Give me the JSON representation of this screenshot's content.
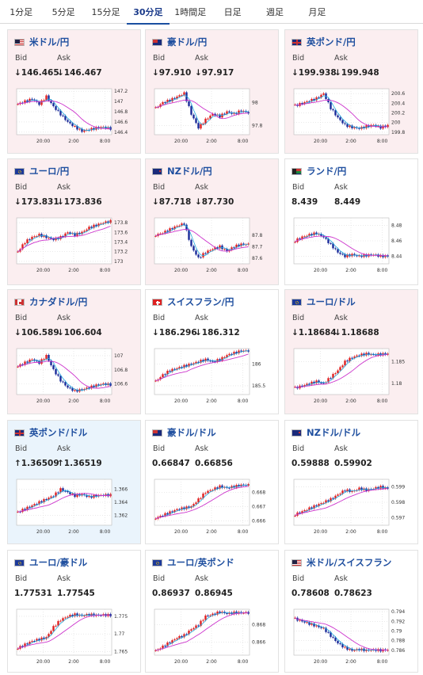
{
  "tabs": [
    {
      "label": "1分足"
    },
    {
      "label": "5分足"
    },
    {
      "label": "15分足"
    },
    {
      "label": "30分足",
      "active": true
    },
    {
      "label": "1時間足"
    },
    {
      "label": "日足"
    },
    {
      "label": "週足"
    },
    {
      "label": "月足"
    }
  ],
  "labels": {
    "bid": "Bid",
    "ask": "Ask"
  },
  "colors": {
    "up": "#e02020",
    "down": "#1a2a9a",
    "ma_short": "#22aadd",
    "ma_long": "#cc33cc",
    "card_red": "#fbeef0",
    "card_blue": "#eaf4fc"
  },
  "pairs": [
    {
      "name": "米ドル/円",
      "flag": "us-flag-icon",
      "bid": "↓146.465",
      "ask": "↓146.467",
      "bg": "red",
      "chart_data": {
        "type": "line",
        "x_ticks": [
          "20:00",
          "2:00",
          "8:00"
        ],
        "y_ticks": [
          "147.2",
          "147",
          "146.8",
          "146.6",
          "146.4"
        ],
        "ylim": [
          146.35,
          147.25
        ],
        "series": [
          {
            "values": [
              146.95,
              147.0,
              147.05,
              146.95,
              147.1,
              146.9,
              146.75,
              146.6,
              146.5,
              146.42,
              146.45,
              146.48,
              146.5,
              146.47
            ]
          }
        ]
      }
    },
    {
      "name": "豪ドル/円",
      "flag": "au-flag-icon",
      "bid": "↓97.910",
      "ask": "↓97.917",
      "bg": "red",
      "chart_data": {
        "type": "line",
        "x_ticks": [
          "20:00",
          "2:00",
          "8:00"
        ],
        "y_ticks": [
          "98",
          "97.8"
        ],
        "ylim": [
          97.72,
          98.12
        ],
        "series": [
          {
            "values": [
              97.95,
              98.0,
              98.02,
              98.05,
              98.08,
              97.9,
              97.78,
              97.85,
              97.9,
              97.88,
              97.92,
              97.9,
              97.93,
              97.91
            ]
          }
        ]
      }
    },
    {
      "name": "英ポンド/円",
      "flag": "gb-flag-icon",
      "bid": "↓199.938",
      "ask": "↓199.948",
      "bg": "red",
      "chart_data": {
        "type": "line",
        "x_ticks": [
          "20:00",
          "2:00",
          "8:00"
        ],
        "y_ticks": [
          "200.6",
          "200.4",
          "200.2",
          "200",
          "199.8"
        ],
        "ylim": [
          199.75,
          200.7
        ],
        "series": [
          {
            "values": [
              200.35,
              200.4,
              200.45,
              200.5,
              200.6,
              200.3,
              200.1,
              199.95,
              199.9,
              199.88,
              199.92,
              199.95,
              199.9,
              199.94
            ]
          }
        ]
      }
    },
    {
      "name": "ユーロ/円",
      "flag": "eu-flag-icon",
      "bid": "↓173.831",
      "ask": "↓173.836",
      "bg": "red",
      "chart_data": {
        "type": "line",
        "x_ticks": [
          "20:00",
          "2:00",
          "8:00"
        ],
        "y_ticks": [
          "173.8",
          "173.6",
          "173.4",
          "173.2",
          "173"
        ],
        "ylim": [
          172.95,
          173.9
        ],
        "series": [
          {
            "values": [
              173.2,
              173.4,
              173.5,
              173.55,
              173.5,
              173.45,
              173.5,
              173.6,
              173.55,
              173.6,
              173.7,
              173.75,
              173.8,
              173.83
            ]
          }
        ]
      }
    },
    {
      "name": "NZドル/円",
      "flag": "nz-flag-icon",
      "bid": "↓87.718",
      "ask": "↓87.730",
      "bg": "red",
      "chart_data": {
        "type": "line",
        "x_ticks": [
          "20:00",
          "2:00",
          "8:00"
        ],
        "y_ticks": [
          "87.8",
          "87.7",
          "87.6"
        ],
        "ylim": [
          87.55,
          87.95
        ],
        "series": [
          {
            "values": [
              87.8,
              87.82,
              87.85,
              87.88,
              87.9,
              87.7,
              87.6,
              87.65,
              87.68,
              87.7,
              87.66,
              87.7,
              87.72,
              87.72
            ]
          }
        ]
      }
    },
    {
      "name": "ランド/円",
      "flag": "za-flag-icon",
      "bid": "8.439",
      "ask": "8.449",
      "bg": "white",
      "chart_data": {
        "type": "line",
        "x_ticks": [
          "20:00",
          "2:00",
          "8:00"
        ],
        "y_ticks": [
          "8.48",
          "8.46",
          "8.44"
        ],
        "ylim": [
          8.43,
          8.49
        ],
        "series": [
          {
            "values": [
              8.46,
              8.465,
              8.468,
              8.47,
              8.465,
              8.455,
              8.445,
              8.44,
              8.442,
              8.44,
              8.441,
              8.442,
              8.44,
              8.44
            ]
          }
        ]
      }
    },
    {
      "name": "カナダドル/円",
      "flag": "ca-flag-icon",
      "bid": "↓106.589",
      "ask": "↓106.604",
      "bg": "red",
      "chart_data": {
        "type": "line",
        "x_ticks": [
          "20:00",
          "2:00",
          "8:00"
        ],
        "y_ticks": [
          "107",
          "106.8",
          "106.6"
        ],
        "ylim": [
          106.45,
          107.1
        ],
        "series": [
          {
            "values": [
              106.85,
              106.9,
              106.95,
              106.9,
              107.0,
              106.8,
              106.65,
              106.55,
              106.5,
              106.52,
              106.55,
              106.58,
              106.6,
              106.59
            ]
          }
        ]
      }
    },
    {
      "name": "スイスフラン/円",
      "flag": "ch-flag-icon",
      "bid": "↓186.296",
      "ask": "↓186.312",
      "bg": "white",
      "chart_data": {
        "type": "line",
        "x_ticks": [
          "20:00",
          "2:00",
          "8:00"
        ],
        "y_ticks": [
          "186",
          "185.5"
        ],
        "ylim": [
          185.3,
          186.35
        ],
        "series": [
          {
            "values": [
              185.6,
              185.75,
              185.85,
              185.9,
              185.95,
              186.0,
              186.05,
              186.1,
              186.05,
              186.1,
              186.2,
              186.25,
              186.3,
              186.3
            ]
          }
        ]
      }
    },
    {
      "name": "ユーロ/ドル",
      "flag": "eu-us-flag-icon",
      "bid": "↓1.18684",
      "ask": "↓1.18688",
      "bg": "red",
      "chart_data": {
        "type": "line",
        "x_ticks": [
          "20:00",
          "2:00",
          "8:00"
        ],
        "y_ticks": [
          "1.185",
          "1.18"
        ],
        "ylim": [
          1.1775,
          1.188
        ],
        "series": [
          {
            "values": [
              1.179,
              1.1795,
              1.18,
              1.1805,
              1.18,
              1.1815,
              1.183,
              1.185,
              1.186,
              1.1865,
              1.1868,
              1.1866,
              1.1867,
              1.1868
            ]
          }
        ]
      }
    },
    {
      "name": "英ポンド/ドル",
      "flag": "gb-us-flag-icon",
      "bid": "↑1.36509",
      "ask": "↑1.36519",
      "bg": "blue",
      "chart_data": {
        "type": "line",
        "x_ticks": [
          "20:00",
          "2:00",
          "8:00"
        ],
        "y_ticks": [
          "1.366",
          "1.364",
          "1.362"
        ],
        "ylim": [
          1.3605,
          1.3675
        ],
        "series": [
          {
            "values": [
              1.3625,
              1.363,
              1.3635,
              1.364,
              1.3645,
              1.365,
              1.366,
              1.3655,
              1.365,
              1.3652,
              1.3648,
              1.365,
              1.3651,
              1.3651
            ]
          }
        ]
      }
    },
    {
      "name": "豪ドル/ドル",
      "flag": "au-us-flag-icon",
      "bid": "0.66847",
      "ask": "0.66856",
      "bg": "white",
      "chart_data": {
        "type": "line",
        "x_ticks": [
          "20:00",
          "2:00",
          "8:00"
        ],
        "y_ticks": [
          "0.668",
          "0.667",
          "0.666"
        ],
        "ylim": [
          0.6657,
          0.6689
        ],
        "series": [
          {
            "values": [
              0.6662,
              0.6664,
              0.6666,
              0.6668,
              0.6669,
              0.667,
              0.6675,
              0.668,
              0.6682,
              0.6684,
              0.6683,
              0.6684,
              0.6685,
              0.6685
            ]
          }
        ]
      }
    },
    {
      "name": "NZドル/ドル",
      "flag": "nz-us-flag-icon",
      "bid": "0.59888",
      "ask": "0.59902",
      "bg": "white",
      "chart_data": {
        "type": "line",
        "x_ticks": [
          "20:00",
          "2:00",
          "8:00"
        ],
        "y_ticks": [
          "0.599",
          "0.598",
          "0.597"
        ],
        "ylim": [
          0.5965,
          0.5995
        ],
        "series": [
          {
            "values": [
              0.5972,
              0.5974,
              0.5976,
              0.5978,
              0.598,
              0.5982,
              0.5985,
              0.5988,
              0.5987,
              0.5989,
              0.5988,
              0.5989,
              0.599,
              0.5989
            ]
          }
        ]
      }
    },
    {
      "name": "ユーロ/豪ドル",
      "flag": "eu-au-flag-icon",
      "bid": "1.77531",
      "ask": "1.77545",
      "bg": "white",
      "chart_data": {
        "type": "line",
        "x_ticks": [
          "20:00",
          "2:00",
          "8:00"
        ],
        "y_ticks": [
          "1.775",
          "1.77",
          "1.765"
        ],
        "ylim": [
          1.764,
          1.777
        ],
        "series": [
          {
            "values": [
              1.766,
              1.767,
              1.768,
              1.7685,
              1.769,
              1.772,
              1.774,
              1.775,
              1.7755,
              1.7752,
              1.7755,
              1.7753,
              1.7754,
              1.7753
            ]
          }
        ]
      }
    },
    {
      "name": "ユーロ/英ポンド",
      "flag": "eu-gb-flag-icon",
      "bid": "0.86937",
      "ask": "0.86945",
      "bg": "white",
      "chart_data": {
        "type": "line",
        "x_ticks": [
          "20:00",
          "2:00",
          "8:00"
        ],
        "y_ticks": [
          "0.868",
          "0.866"
        ],
        "ylim": [
          0.8645,
          0.8698
        ],
        "series": [
          {
            "values": [
              0.865,
              0.8655,
              0.866,
              0.8665,
              0.8668,
              0.8675,
              0.868,
              0.869,
              0.8692,
              0.8695,
              0.8693,
              0.8694,
              0.8694,
              0.8694
            ]
          }
        ]
      }
    },
    {
      "name": "米ドル/スイスフラン",
      "flag": "us-ch-flag-icon",
      "bid": "0.78608",
      "ask": "0.78623",
      "bg": "white",
      "chart_data": {
        "type": "line",
        "x_ticks": [
          "20:00",
          "2:00",
          "8:00"
        ],
        "y_ticks": [
          "0.794",
          "0.792",
          "0.79",
          "0.788",
          "0.786"
        ],
        "ylim": [
          0.785,
          0.7945
        ],
        "series": [
          {
            "values": [
              0.7925,
              0.792,
              0.7915,
              0.791,
              0.7905,
              0.789,
              0.7875,
              0.7865,
              0.786,
              0.7862,
              0.786,
              0.7861,
              0.786,
              0.7861
            ]
          }
        ]
      }
    }
  ]
}
